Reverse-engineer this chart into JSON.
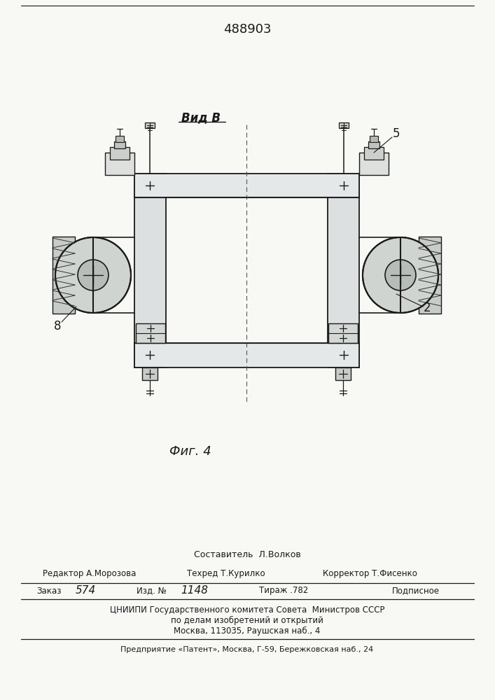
{
  "title_number": "488903",
  "view_label": "Вид В",
  "fig_label": "Фиг. 4",
  "label_2": "2",
  "label_5": "5",
  "label_8": "8",
  "footer_line1": "Составитель  Л.Волков",
  "footer_line2_left": "Редактор А.Морозова",
  "footer_line2_mid": "Техред Т.Курилко",
  "footer_line2_right": "Корректор Т.Фисенко",
  "footer_line3_a": "Заказ",
  "footer_line3_b": "574",
  "footer_line3_c": "Изд. №",
  "footer_line3_d": "1148",
  "footer_line3_e": "Тираж .782",
  "footer_line3_f": "Подписное",
  "footer_line4": "ЦНИИПИ Государственного комитета Совета  Министров СССР",
  "footer_line5": "по делам изобретений и открытий",
  "footer_line6": "Москва, 113035, Раушская наб., 4",
  "footer_line7": "Предприятие «Патент», Москва, Г-59, Бережковская наб., 24",
  "bg_color": "#f8f8f5",
  "line_color": "#1a1a1a",
  "text_color": "#1a1a1a"
}
